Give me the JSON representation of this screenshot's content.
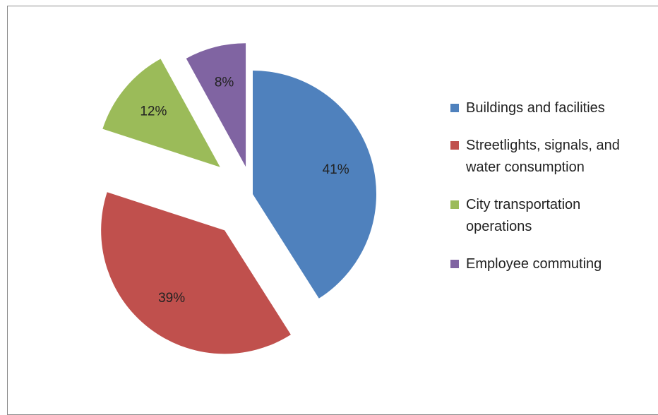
{
  "chart_data": {
    "type": "pie",
    "categories": [
      "Buildings and facilities",
      "Streetlights, signals, and water consumption",
      "City transportation operations",
      "Employee commuting"
    ],
    "values": [
      41,
      39,
      12,
      8
    ],
    "value_labels": [
      "41%",
      "39%",
      "12%",
      "8%"
    ],
    "colors": [
      "#4f81bd",
      "#c0504d",
      "#9bbb59",
      "#8064a2"
    ],
    "legend": "right"
  }
}
